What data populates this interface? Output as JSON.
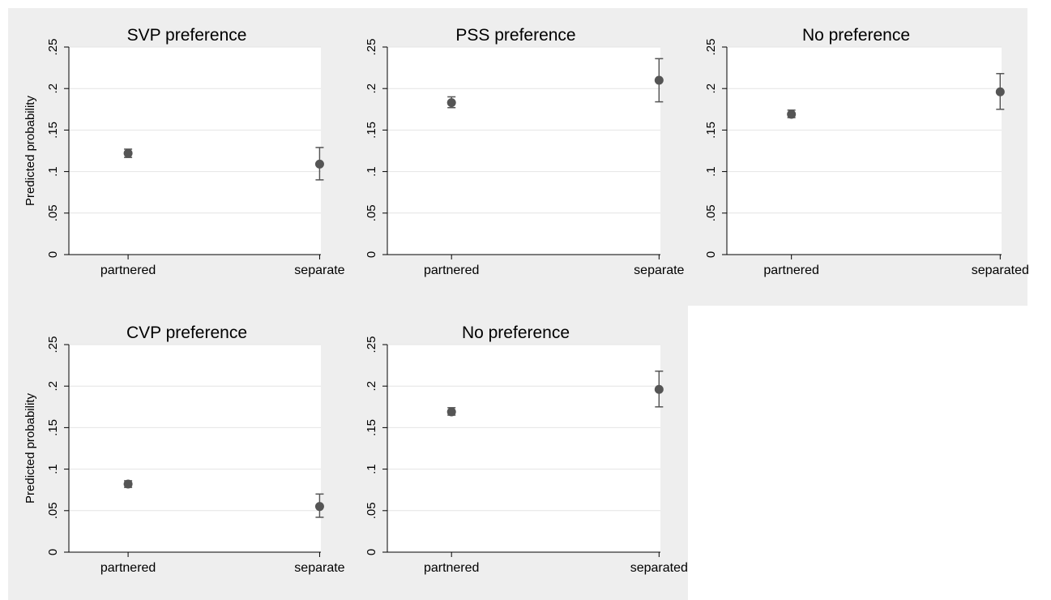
{
  "colors": {
    "panel_background": "#eeeeee",
    "plot_background": "#ffffff",
    "gridline": "#e4e4e4",
    "axis": "#000000",
    "marker": "#555555",
    "error_bar": "#555555"
  },
  "chart_data": [
    {
      "type": "scatter",
      "title": "SVP preference",
      "ylabel": "Predicted probability",
      "xlabel": "",
      "categories": [
        "partnered",
        "separate"
      ],
      "values": [
        0.122,
        0.109
      ],
      "ci_low": [
        0.117,
        0.09
      ],
      "ci_high": [
        0.127,
        0.129
      ],
      "ylim": [
        0,
        0.25
      ],
      "yticks": [
        0,
        0.05,
        0.1,
        0.15,
        0.2,
        0.25
      ],
      "ytick_labels": [
        "0",
        ".05",
        ".1",
        ".15",
        ".2",
        ".25"
      ],
      "grid": true,
      "legend": "none"
    },
    {
      "type": "scatter",
      "title": "PSS preference",
      "ylabel": "",
      "xlabel": "",
      "categories": [
        "partnered",
        "separate"
      ],
      "values": [
        0.183,
        0.21
      ],
      "ci_low": [
        0.177,
        0.184
      ],
      "ci_high": [
        0.19,
        0.236
      ],
      "ylim": [
        0,
        0.25
      ],
      "yticks": [
        0,
        0.05,
        0.1,
        0.15,
        0.2,
        0.25
      ],
      "ytick_labels": [
        "0",
        ".05",
        ".1",
        ".15",
        ".2",
        ".25"
      ],
      "grid": true,
      "legend": "none"
    },
    {
      "type": "scatter",
      "title": "No preference",
      "ylabel": "",
      "xlabel": "",
      "categories": [
        "partnered",
        "separated"
      ],
      "values": [
        0.169,
        0.196
      ],
      "ci_low": [
        0.165,
        0.175
      ],
      "ci_high": [
        0.174,
        0.218
      ],
      "ylim": [
        0,
        0.25
      ],
      "yticks": [
        0,
        0.05,
        0.1,
        0.15,
        0.2,
        0.25
      ],
      "ytick_labels": [
        "0",
        ".05",
        ".1",
        ".15",
        ".2",
        ".25"
      ],
      "grid": true,
      "legend": "none"
    },
    {
      "type": "scatter",
      "title": "CVP preference",
      "ylabel": "Predicted probability",
      "xlabel": "",
      "categories": [
        "partnered",
        "separate"
      ],
      "values": [
        0.082,
        0.055
      ],
      "ci_low": [
        0.078,
        0.042
      ],
      "ci_high": [
        0.086,
        0.07
      ],
      "ylim": [
        0,
        0.25
      ],
      "yticks": [
        0,
        0.05,
        0.1,
        0.15,
        0.2,
        0.25
      ],
      "ytick_labels": [
        "0",
        ".05",
        ".1",
        ".15",
        ".2",
        ".25"
      ],
      "grid": true,
      "legend": "none"
    },
    {
      "type": "scatter",
      "title": "No preference",
      "ylabel": "",
      "xlabel": "",
      "categories": [
        "partnered",
        "separated"
      ],
      "values": [
        0.169,
        0.196
      ],
      "ci_low": [
        0.165,
        0.175
      ],
      "ci_high": [
        0.174,
        0.218
      ],
      "ylim": [
        0,
        0.25
      ],
      "yticks": [
        0,
        0.05,
        0.1,
        0.15,
        0.2,
        0.25
      ],
      "ytick_labels": [
        "0",
        ".05",
        ".1",
        ".15",
        ".2",
        ".25"
      ],
      "grid": true,
      "legend": "none"
    }
  ]
}
